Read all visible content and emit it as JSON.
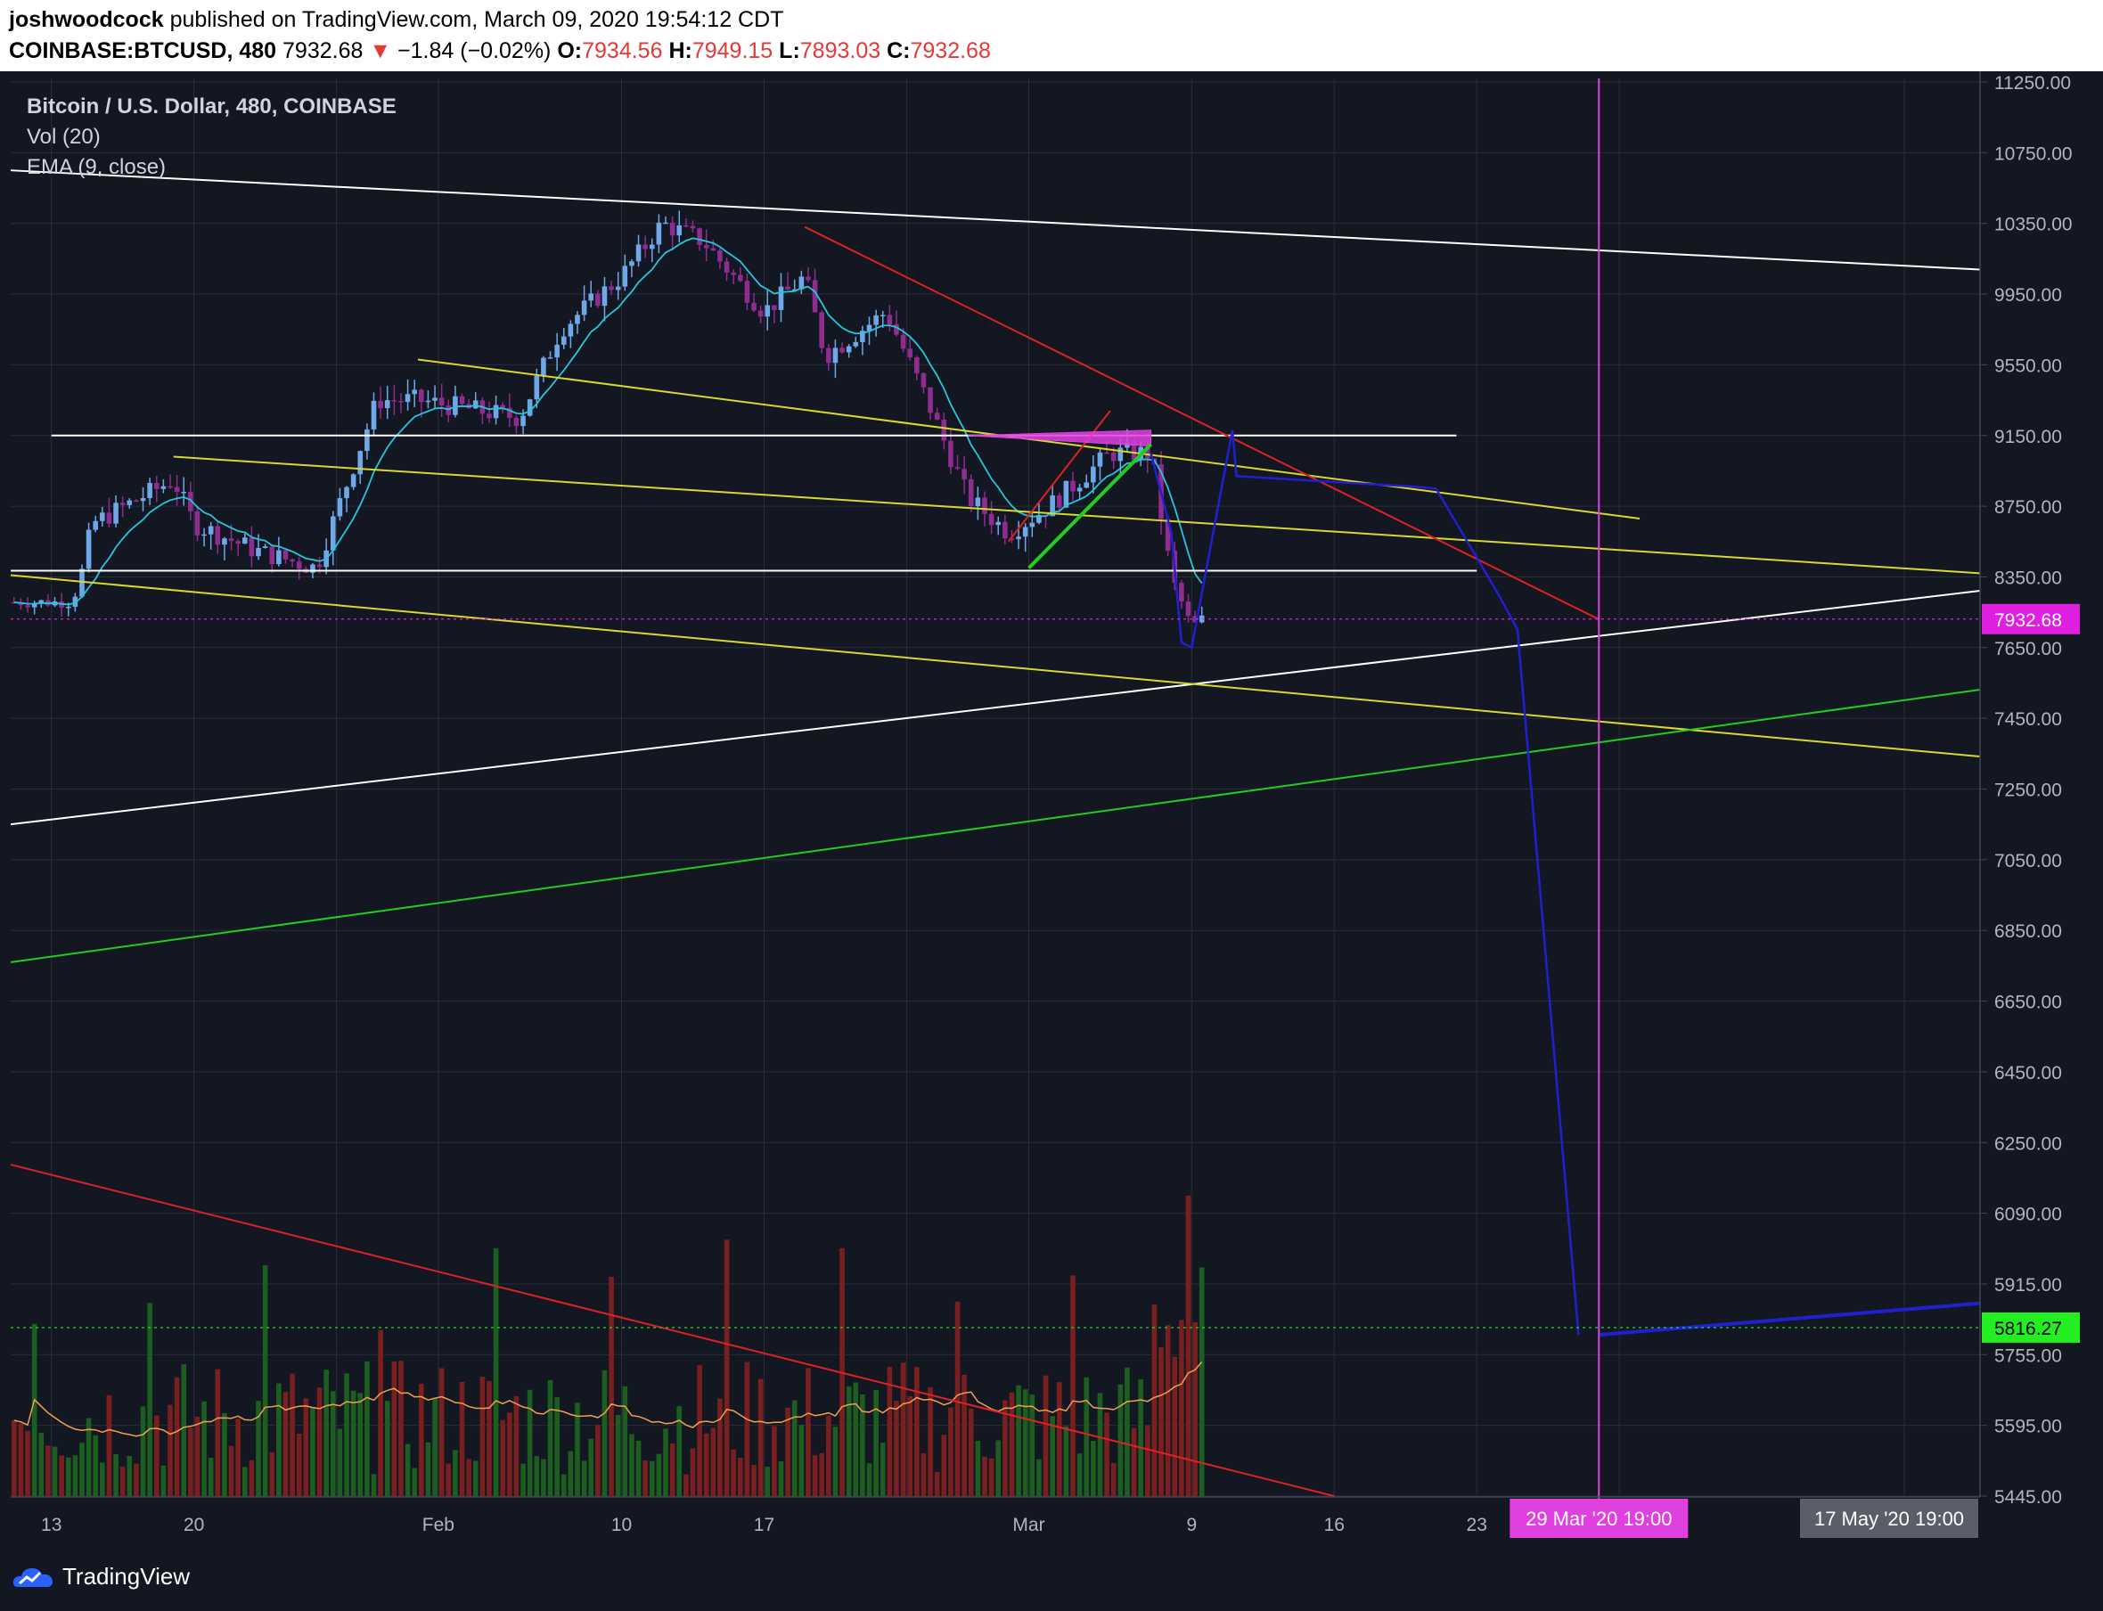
{
  "header": {
    "author": "joshwoodcock",
    "published": "published on TradingView.com, March 09, 2020 19:54:12 CDT",
    "symbol": "COINBASE:BTCUSD, 480",
    "last": "7932.68",
    "change_arrow": "▼",
    "change": "−1.84 (−0.02%)",
    "o_label": "O:",
    "o": "7934.56",
    "h_label": "H:",
    "h": "7949.15",
    "l_label": "L:",
    "l": "7893.03",
    "c_label": "C:",
    "c": "7932.68"
  },
  "legend": {
    "title": "Bitcoin / U.S. Dollar, 480, COINBASE",
    "vol": "Vol (20)",
    "ema": "EMA (9, close)"
  },
  "footer": {
    "brand": "TradingView"
  },
  "colors": {
    "background": "#131722",
    "grid": "#2a2e39",
    "axis_text": "#b2b5be",
    "up": "#6fa8e8",
    "down": "#8e2c90",
    "ema": "#26c6da",
    "vol_up": "#1b5e20",
    "vol_down": "#7a1f1f",
    "vol_ma": "#f0a050",
    "trend_white": "#ffffff",
    "trend_yellow": "#d8d830",
    "trend_red": "#dd2222",
    "trend_green": "#22cc22",
    "forecast_blue": "#2020d0",
    "marker_magenta": "#e040e0",
    "last_price_label": "#e020e0",
    "vol_label": "#22ee22"
  },
  "chart_data": {
    "type": "candlestick",
    "symbol": "BTCUSD",
    "exchange": "COINBASE",
    "interval": "480",
    "y_ticks": [
      11250,
      10750,
      10350,
      9950,
      9550,
      9150,
      8750,
      8350,
      7650,
      7450,
      7250,
      7050,
      6850,
      6650,
      6450,
      6250,
      6090,
      5915,
      5755,
      5595,
      5445
    ],
    "y_tick_labels": [
      "11250.00",
      "10750.00",
      "10350.00",
      "9950.00",
      "9550.00",
      "9150.00",
      "8750.00",
      "8350.00",
      "7650.00",
      "7450.00",
      "7250.00",
      "7050.00",
      "6850.00",
      "6650.00",
      "6450.00",
      "6250.00",
      "6090.00",
      "5915.00",
      "5755.00",
      "5595.00",
      "5445.00"
    ],
    "x_ticks": [
      {
        "label": "13",
        "date": "2020-01-13"
      },
      {
        "label": "20",
        "date": "2020-01-20"
      },
      {
        "label": "Feb",
        "date": "2020-02-01"
      },
      {
        "label": "10",
        "date": "2020-02-10"
      },
      {
        "label": "17",
        "date": "2020-02-17"
      },
      {
        "label": "Mar",
        "date": "2020-03-01"
      },
      {
        "label": "9",
        "date": "2020-03-09"
      },
      {
        "label": "16",
        "date": "2020-03-16"
      },
      {
        "label": "23",
        "date": "2020-03-23"
      }
    ],
    "date_range": [
      "2020-01-11",
      "2020-05-21"
    ],
    "price_range": [
      5445,
      11250
    ],
    "price_key_dates": [
      [
        "2020-01-11",
        8100
      ],
      [
        "2020-01-14",
        8100
      ],
      [
        "2020-01-15",
        8650
      ],
      [
        "2020-01-19",
        8900
      ],
      [
        "2020-01-20",
        8650
      ],
      [
        "2020-01-23",
        8500
      ],
      [
        "2020-01-26",
        8400
      ],
      [
        "2020-01-29",
        9350
      ],
      [
        "2020-01-31",
        9350
      ],
      [
        "2020-02-05",
        9250
      ],
      [
        "2020-02-07",
        9750
      ],
      [
        "2020-02-10",
        10050
      ],
      [
        "2020-02-12",
        10350
      ],
      [
        "2020-02-14",
        10250
      ],
      [
        "2020-02-17",
        9850
      ],
      [
        "2020-02-19",
        10050
      ],
      [
        "2020-02-20",
        9600
      ],
      [
        "2020-02-23",
        9850
      ],
      [
        "2020-02-25",
        9350
      ],
      [
        "2020-02-27",
        8800
      ],
      [
        "2020-02-29",
        8600
      ],
      [
        "2020-03-02",
        8750
      ],
      [
        "2020-03-03",
        8850
      ],
      [
        "2020-03-05",
        9050
      ],
      [
        "2020-03-07",
        9050
      ],
      [
        "2020-03-08",
        8350
      ],
      [
        "2020-03-09",
        7850
      ],
      [
        "2020-03-09.5",
        7932.68
      ]
    ],
    "volume_ma_level": 5816.27,
    "last_price": 7932.68,
    "price_labels": [
      {
        "text": "7932.68",
        "value": 7932.68,
        "kind": "last"
      },
      {
        "text": "5816.27",
        "value": 5816.27,
        "kind": "volume"
      }
    ],
    "date_labels": [
      {
        "text": "29 Mar '20   19:00",
        "kind": "marker"
      },
      {
        "text": "17 May '20   19:00",
        "kind": "cursor"
      }
    ],
    "drawings": [
      {
        "type": "trend",
        "color": "white",
        "p1": [
          "2020-01-11",
          10650
        ],
        "p2": [
          "2020-05-21",
          9890
        ]
      },
      {
        "type": "hline",
        "color": "white",
        "p1": [
          "2020-01-13",
          9150
        ],
        "p2": [
          "2020-03-22",
          9150
        ]
      },
      {
        "type": "hline",
        "color": "white",
        "p1": [
          "2020-01-11",
          8385
        ],
        "p2": [
          "2020-03-23",
          8385
        ]
      },
      {
        "type": "trend",
        "color": "white",
        "p1": [
          "2020-01-11",
          7150
        ],
        "p2": [
          "2020-05-21",
          8740
        ]
      },
      {
        "type": "trend",
        "color": "yellow",
        "p1": [
          "2020-01-31",
          9580
        ],
        "p2": [
          "2020-03-31",
          8680
        ]
      },
      {
        "type": "trend",
        "color": "yellow",
        "p1": [
          "2020-01-19",
          9030
        ],
        "p2": [
          "2020-05-21",
          7940
        ]
      },
      {
        "type": "trend",
        "color": "yellow",
        "p1": [
          "2020-01-11",
          8360
        ],
        "p2": [
          "2020-05-21",
          7160
        ]
      },
      {
        "type": "trend",
        "color": "green",
        "p1": [
          "2020-01-11",
          6760
        ],
        "p2": [
          "2020-05-21",
          8190
        ]
      },
      {
        "type": "trend",
        "color": "red",
        "p1": [
          "2020-02-19",
          10330
        ],
        "p2": [
          "2020-03-29",
          7930
        ]
      },
      {
        "type": "trend",
        "color": "red",
        "p1": [
          "2020-02-29",
          8550
        ],
        "p2": [
          "2020-03-05",
          9290
        ]
      },
      {
        "type": "trend",
        "color": "red",
        "p1": [
          "2020-01-11",
          6200
        ],
        "p2": [
          "2020-03-16",
          5445
        ]
      },
      {
        "type": "triangle",
        "color": "magenta",
        "points": [
          [
            "2020-02-27",
            9150
          ],
          [
            "2020-03-07",
            9180
          ],
          [
            "2020-03-07",
            9090
          ]
        ]
      },
      {
        "type": "trend",
        "color": "green",
        "p1": [
          "2020-03-01",
          8400
        ],
        "p2": [
          "2020-03-07",
          9100
        ]
      },
      {
        "type": "forecast_path",
        "color": "blue",
        "points": [
          [
            "2020-03-07",
            9050
          ],
          [
            "2020-03-08",
            8600
          ],
          [
            "2020-03-08.5",
            7700
          ],
          [
            "2020-03-09",
            7650
          ],
          [
            "2020-03-11",
            9180
          ],
          [
            "2020-03-11.2",
            8920
          ],
          [
            "2020-03-20",
            8860
          ],
          [
            "2020-03-21",
            8850
          ],
          [
            "2020-03-24",
            8200
          ],
          [
            "2020-03-25",
            7830
          ],
          [
            "2020-03-28",
            5800
          ]
        ]
      },
      {
        "type": "trend",
        "color": "blue",
        "p1": [
          "2020-03-29",
          5800
        ],
        "p2": [
          "2020-05-21",
          6010
        ]
      },
      {
        "type": "vline",
        "color": "magenta",
        "date": "2020-03-29"
      }
    ]
  }
}
